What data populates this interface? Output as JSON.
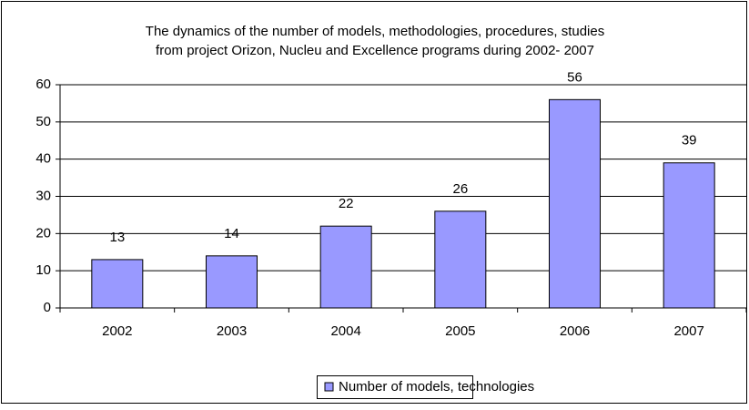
{
  "chart_data": {
    "type": "bar",
    "title": [
      "The dynamics of the number of models, methodologies, procedures, studies",
      "from  project Orizon, Nucleu and Excellence programs during 2002- 2007"
    ],
    "categories": [
      "2002",
      "2003",
      "2004",
      "2005",
      "2006",
      "2007"
    ],
    "series": [
      {
        "name": "Number of models, technologies",
        "color": "#9999ff",
        "values": [
          13,
          14,
          22,
          26,
          56,
          39
        ]
      }
    ],
    "ylim": [
      0,
      60
    ],
    "yticks": [
      0,
      10,
      20,
      30,
      40,
      50,
      60
    ],
    "grid": true,
    "legend": "bottom"
  }
}
